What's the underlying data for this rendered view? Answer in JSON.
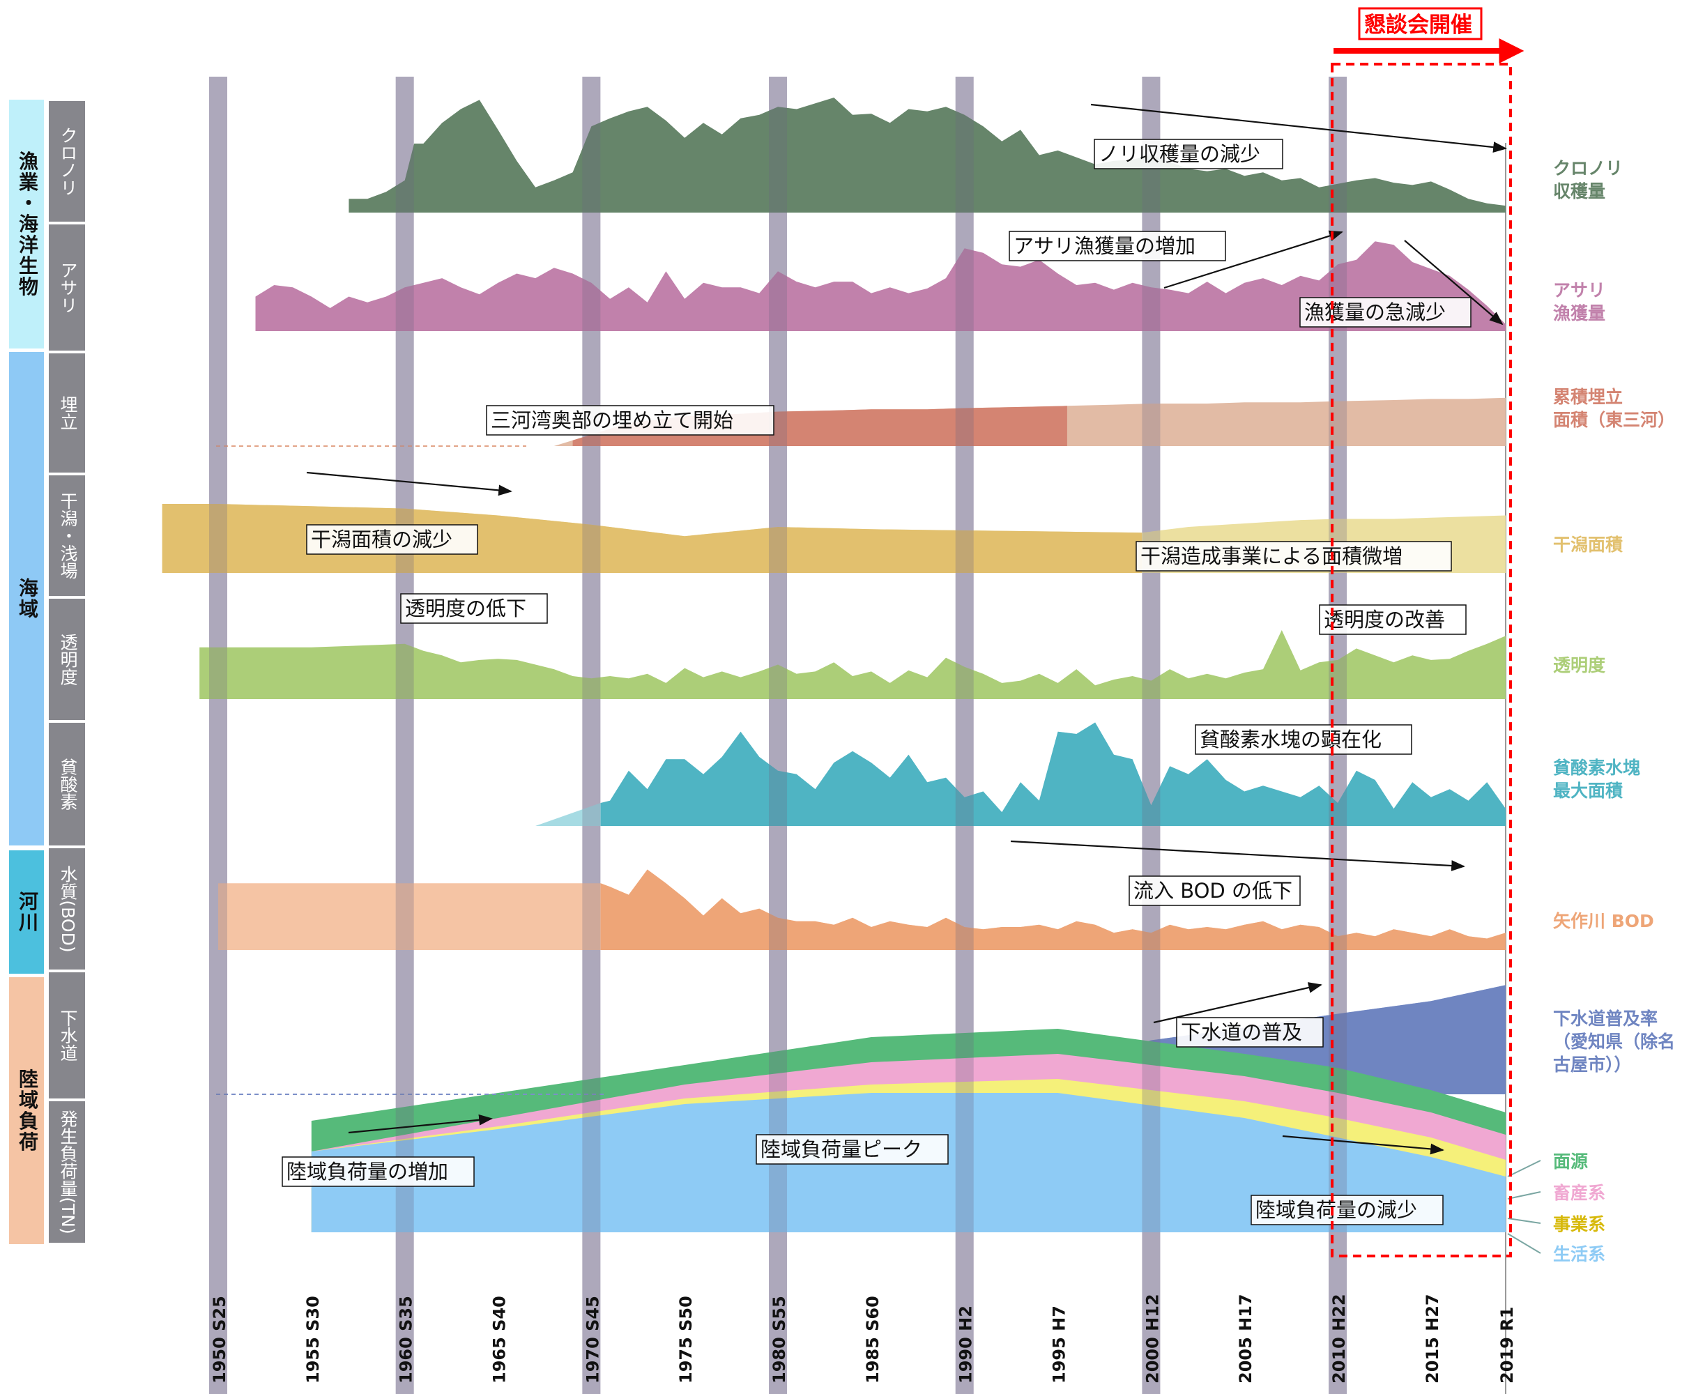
{
  "chart_data": {
    "type": "area",
    "title": "",
    "x_ticks": [
      "1950 S25",
      "1955 S30",
      "1960 S35",
      "1965 S40",
      "1970 S45",
      "1975 S50",
      "1980 S55",
      "1985 S60",
      "1990 H2",
      "1995 H7",
      "2000 H12",
      "2005 H17",
      "2010 H22",
      "2015 H27",
      "2019 R1"
    ],
    "x_tick_years": [
      1950,
      1955,
      1960,
      1965,
      1970,
      1975,
      1980,
      1985,
      1990,
      1995,
      2000,
      2005,
      2010,
      2015,
      2019
    ],
    "highlight": {
      "label": "懇談会開催",
      "from_year": 2010,
      "to_year": 2019,
      "color": "#ff0000"
    },
    "categories": [
      {
        "label": "漁業・海洋生物",
        "color": "#bff0fa",
        "row_from": 0,
        "row_to": 1
      },
      {
        "label": "海域",
        "color": "#8ec9f5",
        "row_from": 2,
        "row_to": 5
      },
      {
        "label": "河川",
        "color": "#4cc0de",
        "row_from": 6,
        "row_to": 6
      },
      {
        "label": "陸域負荷",
        "color": "#f5c4a4",
        "row_from": 7,
        "row_to": 8
      }
    ],
    "rows": [
      {
        "label": "クロノリ",
        "series_label": "クロノリ\n収穫量",
        "color": "#66856a",
        "type": "area",
        "x": [
          1957,
          1958,
          1959,
          1960,
          1960.5,
          1961,
          1962,
          1963,
          1964,
          1965,
          1966,
          1967,
          1968,
          1969,
          1970,
          1971,
          1972,
          1973,
          1974,
          1975,
          1976,
          1977,
          1978,
          1979,
          1980,
          1981,
          1982,
          1983,
          1984,
          1985,
          1986,
          1987,
          1988,
          1989,
          1990,
          1991,
          1992,
          1993,
          1994,
          1995,
          1996,
          1997,
          1998,
          1999,
          2000,
          2001,
          2002,
          2003,
          2004,
          2005,
          2006,
          2007,
          2008,
          2009,
          2010,
          2011,
          2012,
          2013,
          2014,
          2015,
          2016,
          2017,
          2018,
          2019
        ],
        "y": [
          0.12,
          0.12,
          0.18,
          0.28,
          0.6,
          0.6,
          0.78,
          0.9,
          0.98,
          0.72,
          0.45,
          0.22,
          0.28,
          0.35,
          0.75,
          0.82,
          0.88,
          0.92,
          0.8,
          0.65,
          0.78,
          0.68,
          0.82,
          0.85,
          0.92,
          0.9,
          0.95,
          1.0,
          0.85,
          0.86,
          0.78,
          0.9,
          0.88,
          0.92,
          0.85,
          0.75,
          0.62,
          0.72,
          0.5,
          0.54,
          0.48,
          0.42,
          0.45,
          0.46,
          0.5,
          0.44,
          0.38,
          0.36,
          0.38,
          0.32,
          0.35,
          0.28,
          0.3,
          0.22,
          0.25,
          0.28,
          0.3,
          0.26,
          0.24,
          0.27,
          0.2,
          0.12,
          0.08,
          0.06
        ]
      },
      {
        "label": "アサリ",
        "series_label": "アサリ\n漁獲量",
        "color": "#c181ab",
        "type": "area",
        "x": [
          1952,
          1953,
          1954,
          1955,
          1956,
          1957,
          1958,
          1959,
          1960,
          1961,
          1962,
          1963,
          1964,
          1965,
          1966,
          1967,
          1968,
          1969,
          1970,
          1971,
          1972,
          1973,
          1974,
          1975,
          1976,
          1977,
          1978,
          1979,
          1980,
          1981,
          1982,
          1983,
          1984,
          1985,
          1986,
          1987,
          1988,
          1989,
          1990,
          1991,
          1992,
          1993,
          1994,
          1995,
          1996,
          1997,
          1998,
          1999,
          2000,
          2001,
          2002,
          2003,
          2004,
          2005,
          2006,
          2007,
          2008,
          2009,
          2010,
          2011,
          2012,
          2013,
          2014,
          2015,
          2016,
          2017,
          2018,
          2019
        ],
        "y": [
          0.3,
          0.4,
          0.38,
          0.3,
          0.2,
          0.3,
          0.25,
          0.3,
          0.38,
          0.42,
          0.46,
          0.38,
          0.32,
          0.42,
          0.5,
          0.46,
          0.55,
          0.5,
          0.42,
          0.28,
          0.38,
          0.25,
          0.52,
          0.28,
          0.42,
          0.38,
          0.38,
          0.33,
          0.52,
          0.43,
          0.38,
          0.43,
          0.43,
          0.33,
          0.38,
          0.33,
          0.37,
          0.46,
          0.72,
          0.68,
          0.58,
          0.56,
          0.62,
          0.5,
          0.4,
          0.42,
          0.36,
          0.42,
          0.38,
          0.36,
          0.33,
          0.43,
          0.33,
          0.42,
          0.46,
          0.4,
          0.48,
          0.44,
          0.58,
          0.62,
          0.78,
          0.75,
          0.6,
          0.54,
          0.48,
          0.36,
          0.22,
          0.06
        ]
      },
      {
        "label": "埋立",
        "series_label": "累積埋立\n面積（東三河）",
        "color": "#d48472",
        "type": "area",
        "x": [
          1950,
          1961,
          1963,
          1965,
          1968,
          1970,
          1972,
          1975,
          1978,
          1980,
          1983,
          1985,
          1988,
          1990,
          1993,
          1995.5,
          1998,
          2000,
          2003,
          2005,
          2008,
          2010,
          2013,
          2015,
          2017,
          2019
        ],
        "y": [
          0.0,
          0.0,
          0.0,
          0.0,
          0.0,
          0.1,
          0.2,
          0.26,
          0.28,
          0.3,
          0.31,
          0.32,
          0.32,
          0.33,
          0.34,
          0.35,
          0.36,
          0.37,
          0.37,
          0.38,
          0.38,
          0.39,
          0.4,
          0.41,
          0.41,
          0.42
        ],
        "solid_from_year": 1969,
        "solid_to_year": 1995.5,
        "light_color": "#e2bba5"
      },
      {
        "label": "干潟・浅場",
        "series_label": "干潟面積",
        "color": "#e2c06e",
        "type": "area",
        "x": [
          1947,
          1950,
          1955,
          1960,
          1965,
          1970,
          1975,
          1980,
          1985,
          1990,
          1995,
          1999.5,
          2002,
          2005,
          2008,
          2010,
          2013,
          2015,
          2017,
          2019
        ],
        "y": [
          0.6,
          0.6,
          0.58,
          0.56,
          0.5,
          0.42,
          0.32,
          0.4,
          0.38,
          0.37,
          0.36,
          0.35,
          0.4,
          0.43,
          0.46,
          0.47,
          0.47,
          0.48,
          0.49,
          0.5
        ],
        "solid_from_year": 1947,
        "solid_to_year": 1999.5,
        "light_color": "#ece0a0"
      },
      {
        "label": "透明度",
        "series_label": "透明度",
        "color": "#acce78",
        "type": "area",
        "x": [
          1949,
          1950,
          1955,
          1960,
          1961,
          1962,
          1963,
          1964,
          1965,
          1966,
          1967,
          1968,
          1969,
          1970,
          1971,
          1972,
          1973,
          1974,
          1975,
          1976,
          1977,
          1978,
          1979,
          1980,
          1981,
          1982,
          1983,
          1984,
          1985,
          1986,
          1987,
          1988,
          1989,
          1990,
          1991,
          1992,
          1993,
          1994,
          1995,
          1996,
          1997,
          1998,
          1999,
          2000,
          2001,
          2002,
          2003,
          2004,
          2005,
          2006,
          2007,
          2008,
          2009,
          2010,
          2011,
          2012,
          2013,
          2014,
          2015,
          2016,
          2017,
          2018,
          2019
        ],
        "y": [
          0.45,
          0.45,
          0.45,
          0.48,
          0.42,
          0.38,
          0.32,
          0.34,
          0.35,
          0.34,
          0.3,
          0.26,
          0.2,
          0.18,
          0.2,
          0.18,
          0.22,
          0.14,
          0.27,
          0.19,
          0.24,
          0.19,
          0.24,
          0.3,
          0.22,
          0.24,
          0.32,
          0.2,
          0.24,
          0.14,
          0.25,
          0.19,
          0.36,
          0.28,
          0.22,
          0.14,
          0.16,
          0.22,
          0.14,
          0.26,
          0.12,
          0.17,
          0.2,
          0.16,
          0.26,
          0.18,
          0.22,
          0.18,
          0.23,
          0.26,
          0.6,
          0.25,
          0.32,
          0.34,
          0.44,
          0.38,
          0.32,
          0.38,
          0.34,
          0.35,
          0.42,
          0.48,
          0.55
        ]
      },
      {
        "label": "貧酸素",
        "series_label": "貧酸素水塊\n最大面積",
        "color": "#4fb4c3",
        "type": "area",
        "x": [
          1967,
          1970.5,
          1971,
          1972,
          1973,
          1974,
          1975,
          1976,
          1977,
          1978,
          1979,
          1980,
          1981,
          1982,
          1983,
          1984,
          1985,
          1986,
          1987,
          1988,
          1989,
          1990,
          1991,
          1992,
          1993,
          1994,
          1995,
          1996,
          1997,
          1998,
          1999,
          2000,
          2001,
          2002,
          2003,
          2004,
          2005,
          2006,
          2007,
          2008,
          2009,
          2010,
          2011,
          2012,
          2013,
          2014,
          2015,
          2016,
          2017,
          2018,
          2019
        ],
        "y": [
          0.0,
          0.2,
          0.22,
          0.48,
          0.32,
          0.58,
          0.58,
          0.45,
          0.6,
          0.82,
          0.6,
          0.48,
          0.45,
          0.32,
          0.55,
          0.65,
          0.55,
          0.42,
          0.62,
          0.38,
          0.42,
          0.25,
          0.3,
          0.12,
          0.38,
          0.22,
          0.82,
          0.8,
          0.9,
          0.62,
          0.58,
          0.18,
          0.52,
          0.45,
          0.58,
          0.4,
          0.3,
          0.35,
          0.3,
          0.25,
          0.35,
          0.2,
          0.48,
          0.4,
          0.15,
          0.38,
          0.25,
          0.32,
          0.22,
          0.38,
          0.15
        ],
        "solid_from_year": 1970.5,
        "solid_to_year": 2019,
        "light_color": "#a6dbe3"
      },
      {
        "label": "水質(BOD)",
        "series_label": "矢作川 BOD",
        "color": "#eea577",
        "type": "area",
        "x": [
          1950,
          1960,
          1970.5,
          1971,
          1972,
          1973,
          1974,
          1975,
          1976,
          1977,
          1978,
          1979,
          1980,
          1981,
          1982,
          1983,
          1984,
          1985,
          1986,
          1987,
          1988,
          1989,
          1990,
          1991,
          1992,
          1993,
          1994,
          1995,
          1996,
          1997,
          1998,
          1999,
          2000,
          2001,
          2002,
          2003,
          2004,
          2005,
          2006,
          2007,
          2008,
          2009,
          2010,
          2011,
          2012,
          2013,
          2014,
          2015,
          2016,
          2017,
          2018,
          2019
        ],
        "y": [
          0.58,
          0.58,
          0.58,
          0.55,
          0.48,
          0.7,
          0.58,
          0.45,
          0.3,
          0.45,
          0.32,
          0.36,
          0.28,
          0.25,
          0.25,
          0.22,
          0.28,
          0.2,
          0.25,
          0.22,
          0.2,
          0.28,
          0.2,
          0.18,
          0.2,
          0.2,
          0.22,
          0.18,
          0.25,
          0.22,
          0.15,
          0.18,
          0.15,
          0.22,
          0.18,
          0.2,
          0.18,
          0.22,
          0.25,
          0.18,
          0.22,
          0.2,
          0.12,
          0.15,
          0.12,
          0.18,
          0.15,
          0.12,
          0.18,
          0.12,
          0.1,
          0.15
        ],
        "solid_from_year": 1970.5,
        "solid_to_year": 2019,
        "light_color": "#f5c4a4"
      },
      {
        "label": "下水道",
        "series_label": "下水道普及率\n（愛知県（除名\n古屋市））",
        "color": "#6f85c1",
        "type": "area",
        "x": [
          1950,
          1970,
          1980,
          1985,
          1990,
          1995,
          2000,
          2005,
          2010,
          2015,
          2019
        ],
        "y": [
          0.0,
          0.0,
          0.07,
          0.13,
          0.22,
          0.25,
          0.47,
          0.58,
          0.7,
          0.81,
          0.95
        ],
        "solid_from_year": 1985,
        "solid_to_year": 2019,
        "light_color": "#a9b8de"
      },
      {
        "label": "発生負荷量(TN)",
        "type": "stacked_area",
        "x": [
          1955,
          1965,
          1975,
          1985,
          1995,
          2005,
          2010,
          2015,
          2019
        ],
        "series": [
          {
            "name": "生活系",
            "color": "#8ecbf5",
            "values": [
              0.29,
              0.37,
              0.46,
              0.5,
              0.5,
              0.41,
              0.34,
              0.27,
              0.2
            ]
          },
          {
            "name": "事業系",
            "color": "#f5f07a",
            "values": [
              0.0,
              0.01,
              0.02,
              0.03,
              0.05,
              0.06,
              0.07,
              0.07,
              0.06
            ]
          },
          {
            "name": "畜産系",
            "color": "#f0a8d2",
            "values": [
              0.0,
              0.03,
              0.05,
              0.08,
              0.09,
              0.09,
              0.09,
              0.09,
              0.09
            ]
          },
          {
            "name": "面源",
            "color": "#56ba7a",
            "values": [
              0.11,
              0.09,
              0.07,
              0.09,
              0.09,
              0.08,
              0.09,
              0.08,
              0.08
            ]
          }
        ]
      }
    ],
    "annotations": [
      {
        "text": "ノリ収穫量の減少"
      },
      {
        "text": "アサリ漁獲量の増加"
      },
      {
        "text": "漁獲量の急減少"
      },
      {
        "text": "三河湾奥部の埋め立て開始"
      },
      {
        "text": "干潟面積の減少"
      },
      {
        "text": "干潟造成事業による面積微増"
      },
      {
        "text": "透明度の低下"
      },
      {
        "text": "透明度の改善"
      },
      {
        "text": "貧酸素水塊の顕在化"
      },
      {
        "text": "流入 BOD の低下"
      },
      {
        "text": "下水道の普及"
      },
      {
        "text": "陸域負荷量ピーク"
      },
      {
        "text": "陸域負荷量の増加"
      },
      {
        "text": "陸域負荷量の減少"
      }
    ]
  }
}
